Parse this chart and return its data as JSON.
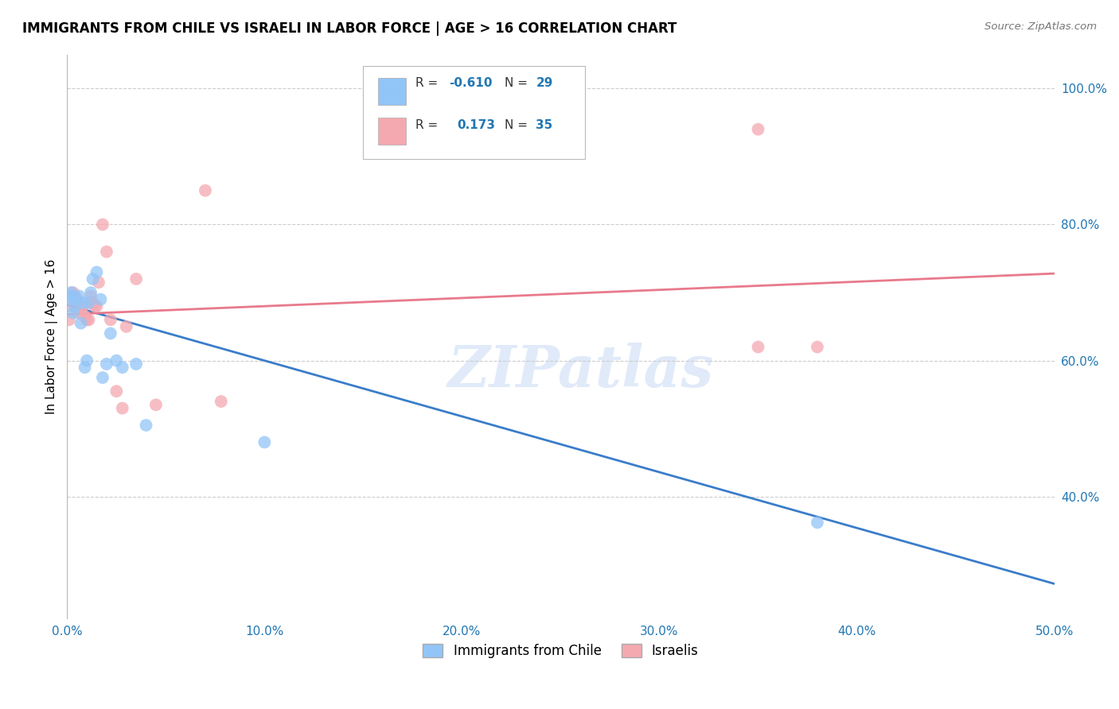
{
  "title": "IMMIGRANTS FROM CHILE VS ISRAELI IN LABOR FORCE | AGE > 16 CORRELATION CHART",
  "source": "Source: ZipAtlas.com",
  "ylabel": "In Labor Force | Age > 16",
  "xlim": [
    0.0,
    0.5
  ],
  "ylim": [
    0.22,
    1.05
  ],
  "xtick_labels": [
    "0.0%",
    "10.0%",
    "20.0%",
    "30.0%",
    "40.0%",
    "50.0%"
  ],
  "xtick_vals": [
    0.0,
    0.1,
    0.2,
    0.3,
    0.4,
    0.5
  ],
  "ytick_labels": [
    "40.0%",
    "60.0%",
    "80.0%",
    "100.0%"
  ],
  "ytick_vals": [
    0.4,
    0.6,
    0.8,
    1.0
  ],
  "watermark": "ZIPatlas",
  "color_chile": "#92c5f7",
  "color_israeli": "#f4a8b0",
  "color_line_chile": "#3a7dc9",
  "color_line_israeli": "#e87a8c",
  "chile_line_x0": 0.0,
  "chile_line_y0": 0.682,
  "chile_line_x1": 0.5,
  "chile_line_y1": 0.272,
  "israeli_line_x0": 0.0,
  "israeli_line_y0": 0.668,
  "israeli_line_x1": 0.5,
  "israeli_line_y1": 0.728,
  "scatter_chile_x": [
    0.001,
    0.002,
    0.002,
    0.003,
    0.004,
    0.005,
    0.006,
    0.007,
    0.008,
    0.009,
    0.01,
    0.011,
    0.012,
    0.013,
    0.015,
    0.017,
    0.018,
    0.02,
    0.022,
    0.025,
    0.028,
    0.035,
    0.04,
    0.1,
    0.38
  ],
  "scatter_chile_y": [
    0.69,
    0.695,
    0.7,
    0.67,
    0.68,
    0.69,
    0.695,
    0.655,
    0.685,
    0.59,
    0.6,
    0.685,
    0.7,
    0.72,
    0.73,
    0.69,
    0.575,
    0.595,
    0.64,
    0.6,
    0.59,
    0.595,
    0.505,
    0.48,
    0.362
  ],
  "scatter_israeli_x": [
    0.001,
    0.002,
    0.003,
    0.004,
    0.005,
    0.006,
    0.007,
    0.008,
    0.009,
    0.01,
    0.011,
    0.012,
    0.013,
    0.014,
    0.015,
    0.016,
    0.018,
    0.02,
    0.022,
    0.025,
    0.028,
    0.03,
    0.035,
    0.045,
    0.07,
    0.078,
    0.35,
    0.38
  ],
  "scatter_israeli_y": [
    0.66,
    0.68,
    0.7,
    0.695,
    0.69,
    0.67,
    0.675,
    0.68,
    0.665,
    0.66,
    0.66,
    0.695,
    0.685,
    0.68,
    0.68,
    0.715,
    0.8,
    0.76,
    0.66,
    0.555,
    0.53,
    0.65,
    0.72,
    0.535,
    0.85,
    0.54,
    0.62,
    0.62
  ],
  "scatter_israeli_high_x": [
    0.35
  ],
  "scatter_israeli_high_y": [
    0.94
  ]
}
